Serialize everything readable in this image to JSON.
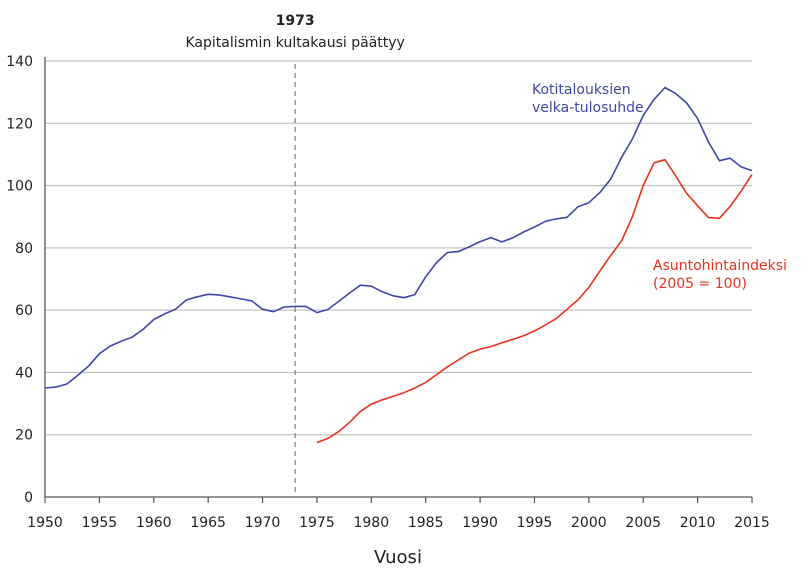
{
  "chart_data": {
    "type": "line",
    "xlabel": "Vuosi",
    "ylabel": "",
    "xlim": [
      1950,
      2015
    ],
    "ylim": [
      0,
      140
    ],
    "x_ticks": [
      1950,
      1955,
      1960,
      1965,
      1970,
      1975,
      1980,
      1985,
      1990,
      1995,
      2000,
      2005,
      2010,
      2015
    ],
    "y_ticks": [
      0,
      20,
      40,
      60,
      80,
      100,
      120,
      140
    ],
    "grid": "horizontal",
    "annotation": {
      "x": 1973,
      "year_label": "1973",
      "text": "Kapitalismin kultakausi päättyy"
    },
    "series": [
      {
        "name": "Kotitalouksien velka-tulosuhde",
        "label_lines": [
          "Kotitalouksien",
          "velka-tulosuhde"
        ],
        "color": "#3f48a8",
        "x": [
          1950,
          1951,
          1952,
          1953,
          1954,
          1955,
          1956,
          1957,
          1958,
          1959,
          1960,
          1961,
          1962,
          1963,
          1964,
          1965,
          1966,
          1967,
          1968,
          1969,
          1970,
          1971,
          1972,
          1973,
          1974,
          1975,
          1976,
          1977,
          1978,
          1979,
          1980,
          1981,
          1982,
          1983,
          1984,
          1985,
          1986,
          1987,
          1988,
          1989,
          1990,
          1991,
          1992,
          1993,
          1994,
          1995,
          1996,
          1997,
          1998,
          1999,
          2000,
          2001,
          2002,
          2003,
          2004,
          2005,
          2006,
          2007,
          2008,
          2009,
          2010,
          2011,
          2012,
          2013,
          2014,
          2015
        ],
        "y": [
          35,
          35.3,
          36.3,
          39,
          42,
          46,
          48.5,
          50,
          51.3,
          53.8,
          57,
          58.8,
          60.3,
          63.3,
          64.3,
          65.1,
          64.9,
          64.3,
          63.6,
          63,
          60.3,
          59.5,
          61,
          61.2,
          61.2,
          59.2,
          60.2,
          62.8,
          65.5,
          68,
          67.7,
          65.9,
          64.6,
          64,
          65,
          70.7,
          75.3,
          78.5,
          78.8,
          80.3,
          82,
          83.3,
          81.9,
          83.2,
          85.1,
          86.7,
          88.5,
          89.3,
          89.8,
          93.2,
          94.5,
          97.7,
          102,
          109,
          115,
          122.5,
          127.7,
          131.5,
          129.5,
          126.5,
          121.5,
          114,
          108,
          108.8,
          106,
          104.8
        ]
      },
      {
        "name": "Asuntohintaindeksi (2005 = 100)",
        "label_lines": [
          "Asuntohintaindeksi",
          "(2005 = 100)"
        ],
        "color": "#e8321e",
        "x": [
          1975,
          1976,
          1977,
          1978,
          1979,
          1980,
          1981,
          1982,
          1983,
          1984,
          1985,
          1986,
          1987,
          1988,
          1989,
          1990,
          1991,
          1992,
          1993,
          1994,
          1995,
          1996,
          1997,
          1998,
          1999,
          2000,
          2001,
          2002,
          2003,
          2004,
          2005,
          2006,
          2007,
          2008,
          2009,
          2010,
          2011,
          2012,
          2013,
          2014,
          2015
        ],
        "y": [
          17.5,
          18.8,
          21,
          24,
          27.5,
          29.8,
          31.2,
          32.3,
          33.5,
          35,
          36.8,
          39.3,
          41.8,
          44,
          46.2,
          47.5,
          48.3,
          49.5,
          50.6,
          51.8,
          53.3,
          55.2,
          57.3,
          60.3,
          63.3,
          67.3,
          72.5,
          77.5,
          82.2,
          90,
          100,
          107.3,
          108.3,
          103,
          97.5,
          93.5,
          89.7,
          89.5,
          93.3,
          98.2,
          103.6
        ]
      }
    ]
  }
}
